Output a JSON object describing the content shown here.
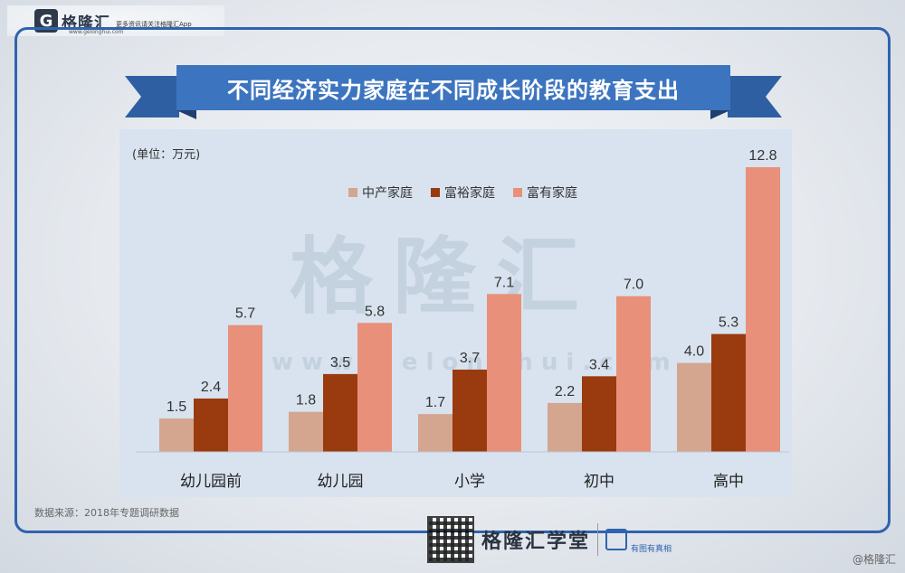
{
  "brand": {
    "logo_letter": "G",
    "name": "格隆汇",
    "url": "www.gelonghui.com",
    "tagline": "更多资讯请关注格隆汇App"
  },
  "title": "不同经济实力家庭在不同成长阶段的教育支出",
  "watermark": {
    "text": "格隆汇",
    "url": "www.gelonghui.com"
  },
  "source": "数据来源：2018年专题调研数据",
  "footer": {
    "brand": "格隆汇学堂",
    "tag": "有图有真相"
  },
  "credit": "@格隆汇",
  "colors": {
    "frame": "#2f63ad",
    "banner": "#3d74bf",
    "panel": "#d8e3ef"
  },
  "chart_data": {
    "type": "bar",
    "unit_label": "(单位：万元)",
    "categories": [
      "幼儿园前",
      "幼儿园",
      "小学",
      "初中",
      "高中"
    ],
    "series": [
      {
        "name": "中产家庭",
        "color": "#d4a58f",
        "values": [
          1.5,
          1.8,
          1.7,
          2.2,
          4.0
        ]
      },
      {
        "name": "富裕家庭",
        "color": "#993b0e",
        "values": [
          2.4,
          3.5,
          3.7,
          3.4,
          5.3
        ]
      },
      {
        "name": "富有家庭",
        "color": "#e8907a",
        "values": [
          5.7,
          5.8,
          7.1,
          7.0,
          12.8
        ]
      }
    ],
    "ylim": [
      0,
      12.8
    ],
    "legend_position": "top",
    "grid": false
  }
}
